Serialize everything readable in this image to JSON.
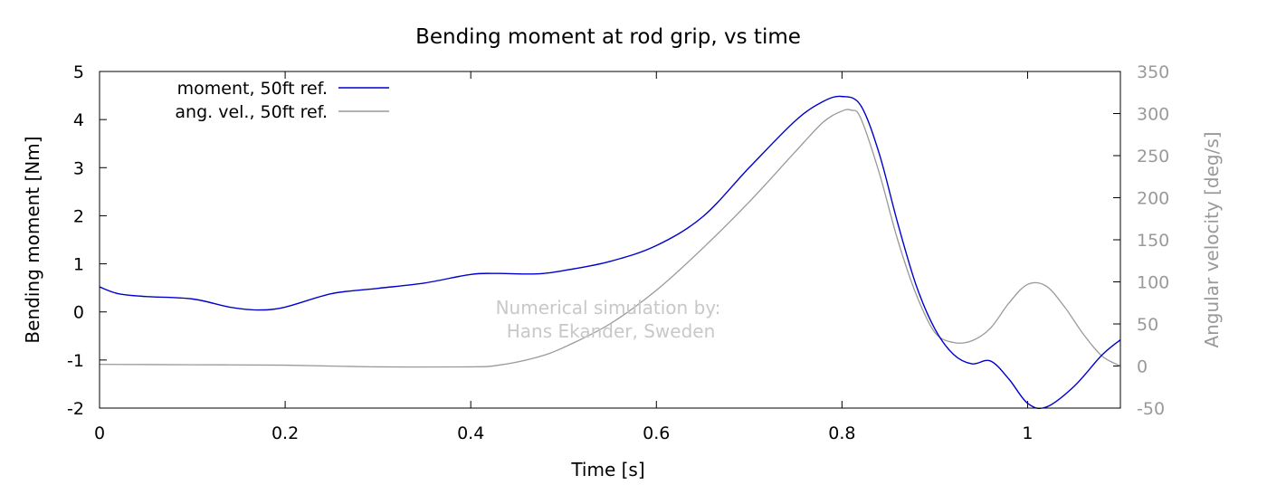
{
  "chart_data": {
    "type": "line",
    "title": "Bending moment at rod grip, vs time",
    "xlabel": "Time [s]",
    "ylabel": "Bending moment [Nm]",
    "y2label": "Angular velocity [deg/s]",
    "xlim": [
      0,
      1.1
    ],
    "ylim": [
      -2,
      5
    ],
    "y2lim": [
      -50,
      350
    ],
    "x_ticks": [
      0,
      0.2,
      0.4,
      0.6,
      0.8,
      1
    ],
    "y_ticks": [
      -2,
      -1,
      0,
      1,
      2,
      3,
      4,
      5
    ],
    "y2_ticks": [
      -50,
      0,
      50,
      100,
      150,
      200,
      250,
      300,
      350
    ],
    "grid": false,
    "legend_position": "top-left",
    "annotation": [
      "Numerical simulation by:",
      "Hans Ekander, Sweden"
    ],
    "series": [
      {
        "name": "moment, 50ft ref.",
        "axis": "left",
        "color": "#0000cc",
        "x": [
          0,
          0.02,
          0.05,
          0.1,
          0.14,
          0.17,
          0.2,
          0.25,
          0.3,
          0.35,
          0.4,
          0.43,
          0.47,
          0.5,
          0.55,
          0.6,
          0.65,
          0.7,
          0.75,
          0.78,
          0.8,
          0.82,
          0.84,
          0.86,
          0.88,
          0.9,
          0.92,
          0.94,
          0.96,
          0.98,
          1.0,
          1.02,
          1.05,
          1.08,
          1.1
        ],
        "y": [
          0.52,
          0.38,
          0.32,
          0.27,
          0.1,
          0.04,
          0.1,
          0.38,
          0.49,
          0.6,
          0.78,
          0.8,
          0.79,
          0.86,
          1.05,
          1.38,
          1.98,
          3.0,
          3.98,
          4.38,
          4.48,
          4.3,
          3.3,
          1.85,
          0.55,
          -0.35,
          -0.88,
          -1.08,
          -1.02,
          -1.4,
          -1.9,
          -1.98,
          -1.55,
          -0.9,
          -0.58
        ]
      },
      {
        "name": "ang. vel., 50ft ref.",
        "axis": "right",
        "color": "#999999",
        "x": [
          0,
          0.1,
          0.2,
          0.3,
          0.4,
          0.43,
          0.47,
          0.5,
          0.55,
          0.6,
          0.65,
          0.7,
          0.75,
          0.78,
          0.8,
          0.81,
          0.82,
          0.84,
          0.86,
          0.88,
          0.9,
          0.92,
          0.94,
          0.96,
          0.98,
          1.0,
          1.02,
          1.04,
          1.06,
          1.08,
          1.1
        ],
        "y": [
          2,
          1.5,
          1,
          -1,
          -1,
          1,
          10,
          22,
          50,
          90,
          140,
          195,
          255,
          290,
          303,
          304,
          295,
          230,
          150,
          85,
          40,
          28,
          30,
          45,
          75,
          97,
          95,
          70,
          38,
          12,
          0
        ]
      }
    ]
  }
}
